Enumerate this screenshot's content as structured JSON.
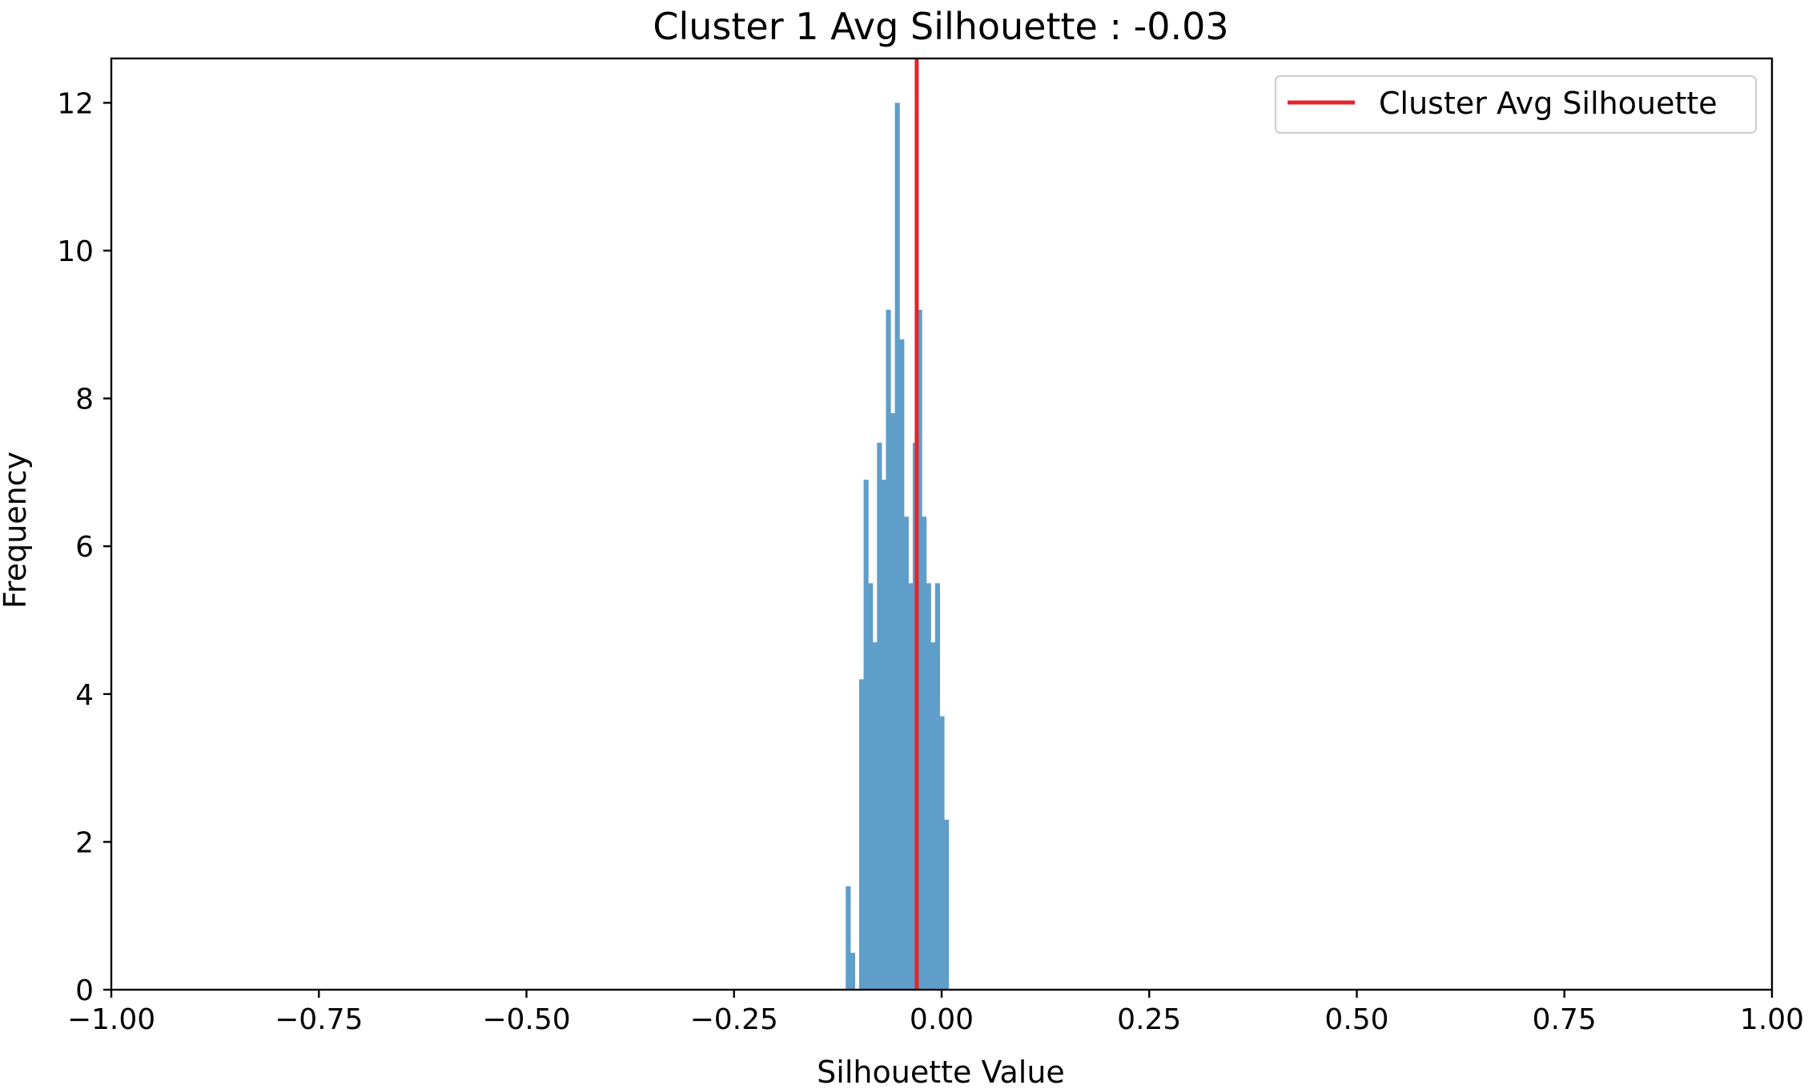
{
  "chart_data": {
    "type": "bar",
    "title": "Cluster 1 Avg Silhouette : -0.03",
    "xlabel": "Silhouette Value",
    "ylabel": "Frequency",
    "xlim": [
      -1.0,
      1.0
    ],
    "ylim": [
      0,
      12.6
    ],
    "xticks": [
      -1.0,
      -0.75,
      -0.5,
      -0.25,
      0.0,
      0.25,
      0.5,
      0.75,
      1.0
    ],
    "xtick_labels": [
      "−1.00",
      "−0.75",
      "−0.50",
      "−0.25",
      "0.00",
      "0.25",
      "0.50",
      "0.75",
      "1.00"
    ],
    "yticks": [
      0,
      2,
      4,
      6,
      8,
      10,
      12
    ],
    "ytick_labels": [
      "0",
      "2",
      "4",
      "6",
      "8",
      "10",
      "12"
    ],
    "bin_start": -0.1155,
    "bin_width": 0.00538,
    "frequencies": [
      1.4,
      0.5,
      0,
      4.2,
      6.9,
      5.5,
      4.7,
      7.4,
      6.9,
      9.2,
      7.8,
      12.0,
      8.8,
      6.4,
      5.5,
      7.4,
      9.2,
      6.4,
      5.5,
      4.7,
      5.5,
      3.7,
      2.3
    ],
    "vline": {
      "x": -0.03,
      "color": "#e8232a",
      "label": "Cluster Avg Silhouette"
    },
    "bar_color": "#5f9ec9",
    "grid": false,
    "legend_position": "top-right"
  }
}
